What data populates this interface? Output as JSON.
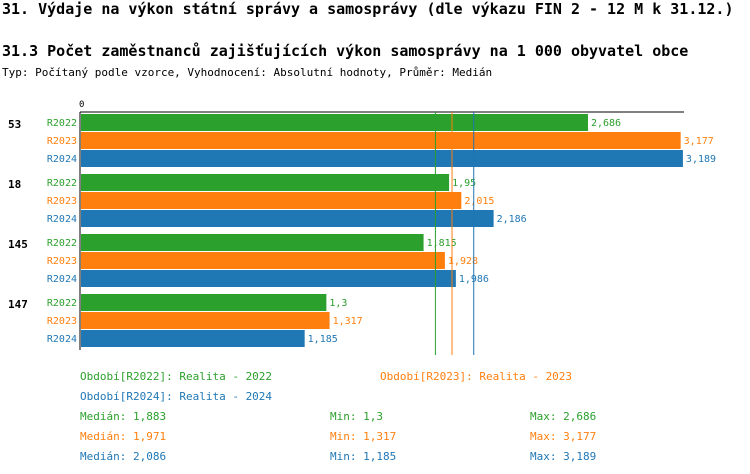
{
  "header": {
    "title": "31. Výdaje na výkon státní správy a samosprávy (dle výkazu FIN 2 - 12 M k 31.12.)",
    "subtitle": "31.3 Počet zaměstnanců zajišťujících výkon samosprávy na 1 000 obyvatel obce",
    "meta": "Typ: Počítaný podle vzorce, Vyhodnocení: Absolutní hodnoty, Průměr: Medián"
  },
  "colors": {
    "R2022": "#2ca02c",
    "R2023": "#ff7f0e",
    "R2024": "#1f77b4"
  },
  "chart_data": {
    "type": "bar",
    "orientation": "horizontal",
    "axis_zero_label": "0",
    "xlim": [
      0,
      3.2
    ],
    "categories": [
      "53",
      "18",
      "145",
      "147"
    ],
    "series": [
      {
        "name": "R2022",
        "values": [
          2.686,
          1.95,
          1.815,
          1.3
        ],
        "labels": [
          "2,686",
          "1,95",
          "1,815",
          "1,3"
        ]
      },
      {
        "name": "R2023",
        "values": [
          3.177,
          2.015,
          1.928,
          1.317
        ],
        "labels": [
          "3,177",
          "2,015",
          "1,928",
          "1,317"
        ]
      },
      {
        "name": "R2024",
        "values": [
          3.189,
          2.186,
          1.986,
          1.185
        ],
        "labels": [
          "3,189",
          "2,186",
          "1,986",
          "1,185"
        ]
      }
    ],
    "median_lines": [
      {
        "series": "R2022",
        "value": 1.883
      },
      {
        "series": "R2023",
        "value": 1.971
      },
      {
        "series": "R2024",
        "value": 2.086
      }
    ]
  },
  "legend": [
    {
      "key": "R2022",
      "text": "Období[R2022]: Realita - 2022"
    },
    {
      "key": "R2023",
      "text": "Období[R2023]: Realita - 2023"
    },
    {
      "key": "R2024",
      "text": "Období[R2024]: Realita - 2024"
    }
  ],
  "stats": [
    {
      "key": "R2022",
      "median": "Medián: 1,883",
      "min": "Min: 1,3",
      "max": "Max: 2,686"
    },
    {
      "key": "R2023",
      "median": "Medián: 1,971",
      "min": "Min: 1,317",
      "max": "Max: 3,177"
    },
    {
      "key": "R2024",
      "median": "Medián: 2,086",
      "min": "Min: 1,185",
      "max": "Max: 3,189"
    }
  ]
}
